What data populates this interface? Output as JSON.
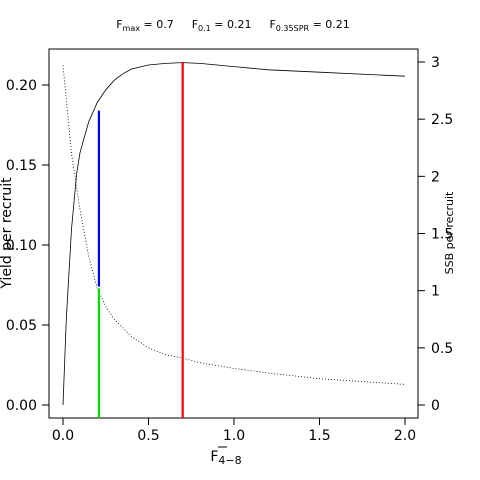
{
  "title_parts": [
    {
      "sym": "F",
      "sub": "max",
      "eq": " = 0.7"
    },
    {
      "sym": "F",
      "sub": "0.1",
      "eq": " = 0.21"
    },
    {
      "sym": "F",
      "sub": "0.35SPR",
      "eq": " = 0.21"
    }
  ],
  "chart_data": {
    "type": "line",
    "title": "Fmax = 0.7   F0.1 = 0.21   F0.35SPR = 0.21",
    "xlabel_main": "F",
    "xlabel_sub": "4−8",
    "ylabel_left": "Yield per recruit",
    "ylabel_right": "SSB per recruit",
    "xlim": [
      0,
      2.0
    ],
    "ylim_left": [
      0,
      0.22
    ],
    "ylim_right": [
      0,
      3
    ],
    "x_ticks": [
      0.0,
      0.5,
      1.0,
      1.5,
      2.0
    ],
    "x_tick_labels": [
      "0.0",
      "0.5",
      "1.0",
      "1.5",
      "2.0"
    ],
    "y_left_ticks": [
      0.0,
      0.05,
      0.1,
      0.15,
      0.2
    ],
    "y_left_tick_labels": [
      "0.00",
      "0.05",
      "0.10",
      "0.15",
      "0.20"
    ],
    "y_right_ticks": [
      0,
      0.5,
      1,
      1.5,
      2,
      2.5,
      3
    ],
    "y_right_tick_labels": [
      "0",
      "0.5",
      "1",
      "1.5",
      "2",
      "2.5",
      "3"
    ],
    "series": [
      {
        "axis": "left",
        "style": "solid",
        "color": "#000000",
        "x": [
          0.0,
          0.02,
          0.05,
          0.08,
          0.1,
          0.15,
          0.2,
          0.25,
          0.3,
          0.35,
          0.4,
          0.5,
          0.6,
          0.7,
          0.8,
          1.0,
          1.2,
          1.5,
          1.8,
          2.0
        ],
        "y": [
          0.0,
          0.055,
          0.11,
          0.145,
          0.158,
          0.177,
          0.189,
          0.197,
          0.203,
          0.207,
          0.21,
          0.2125,
          0.2135,
          0.214,
          0.2135,
          0.2115,
          0.2095,
          0.208,
          0.2065,
          0.2055
        ]
      },
      {
        "axis": "right",
        "style": "dotted",
        "color": "#000000",
        "x": [
          0.0,
          0.05,
          0.1,
          0.15,
          0.2,
          0.25,
          0.3,
          0.4,
          0.5,
          0.6,
          0.7,
          0.8,
          1.0,
          1.2,
          1.5,
          1.8,
          2.0
        ],
        "y": [
          2.97,
          2.2,
          1.7,
          1.3,
          1.02,
          0.86,
          0.75,
          0.6,
          0.5,
          0.44,
          0.41,
          0.37,
          0.32,
          0.28,
          0.23,
          0.2,
          0.18
        ]
      }
    ],
    "reference_lines": [
      {
        "x": 0.7,
        "axis": "left",
        "y_from": 0,
        "y_to": 0.214,
        "color": "#ff0000"
      },
      {
        "x": 0.21,
        "axis": "left",
        "y_from": 0.074,
        "y_to": 0.184,
        "color": "#0000ff"
      },
      {
        "x": 0.21,
        "axis": "right",
        "y_from": 0,
        "y_to": 1.02,
        "color": "#00dd00"
      }
    ]
  }
}
